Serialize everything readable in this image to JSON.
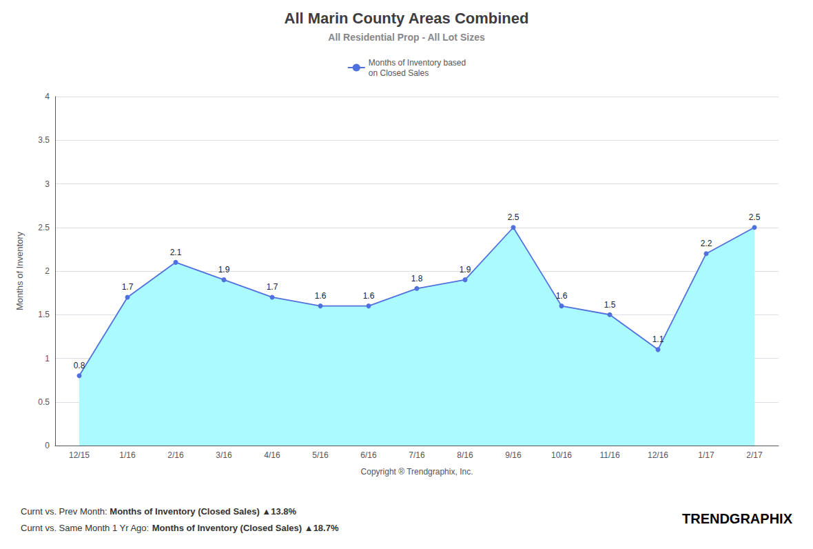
{
  "chart_data": {
    "type": "area",
    "title": "All Marin County Areas Combined",
    "subtitle": "All Residential Prop - All Lot Sizes",
    "ylabel": "Months of Inventory",
    "xlabel": "Copyright ® Trendgraphix, Inc.",
    "categories": [
      "12/15",
      "1/16",
      "2/16",
      "3/16",
      "4/16",
      "5/16",
      "6/16",
      "7/16",
      "8/16",
      "9/16",
      "10/16",
      "11/16",
      "12/16",
      "1/17",
      "2/17"
    ],
    "series": [
      {
        "name": "Months of Inventory based\non Closed Sales",
        "color": "#AAFAFF",
        "values": [
          0.8,
          1.7,
          2.1,
          1.9,
          1.7,
          1.6,
          1.6,
          1.8,
          1.9,
          2.5,
          1.6,
          1.5,
          1.1,
          2.2,
          2.5
        ]
      }
    ],
    "ylim": [
      0,
      4
    ],
    "yticks": [
      0,
      0.5,
      1,
      1.5,
      2,
      2.5,
      3,
      3.5,
      4
    ],
    "grid": true,
    "legend": "top",
    "data_labels": true,
    "annotations": [
      [
        "Curnt vs. Prev Month:",
        "Months of Inventory (Closed Sales)",
        "▲13.8%"
      ],
      [
        "Curnt vs. Same Month 1 Yr Ago:",
        "Months of Inventory (Closed Sales)",
        "▲18.7%"
      ],
      [
        "TREND",
        "GRAPHIX"
      ]
    ]
  }
}
